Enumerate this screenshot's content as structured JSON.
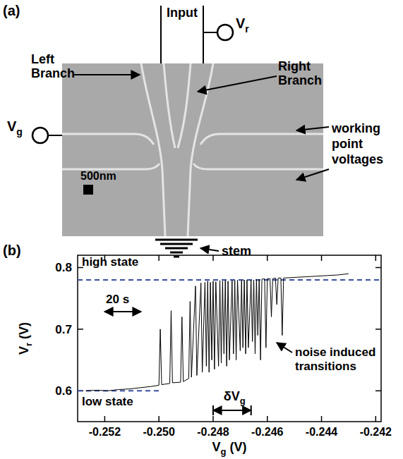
{
  "diagram": {
    "panel_label": "(a)",
    "input": "Input",
    "vr": "Vr",
    "vg": "Vg",
    "left_branch": "Left Branch",
    "right_branch": "Right Branch",
    "working_point": "working point voltages",
    "scale_bar": "500nm",
    "stem": "stem"
  },
  "chart_data": {
    "type": "line",
    "panel_label": "(b)",
    "xlabel": "Vg (V)",
    "ylabel": "Vr (V)",
    "color": "#000000",
    "x": [
      -0.2527,
      -0.2523,
      -0.2519,
      -0.2515,
      -0.2511,
      -0.2507,
      -0.2503,
      -0.25,
      -0.24995,
      -0.2499,
      -0.2496,
      -0.24955,
      -0.2495,
      -0.2492,
      -0.24915,
      -0.2491,
      -0.2489,
      -0.24885,
      -0.2488,
      -0.24865,
      -0.2486,
      -0.24845,
      -0.2484,
      -0.2483,
      -0.24825,
      -0.2482,
      -0.24815,
      -0.2481,
      -0.24805,
      -0.248,
      -0.24795,
      -0.2479,
      -0.2478,
      -0.24775,
      -0.2477,
      -0.24765,
      -0.2476,
      -0.24755,
      -0.2475,
      -0.24745,
      -0.2474,
      -0.2473,
      -0.24725,
      -0.2472,
      -0.24715,
      -0.2471,
      -0.247,
      -0.24695,
      -0.2469,
      -0.24685,
      -0.2468,
      -0.24675,
      -0.2467,
      -0.2466,
      -0.24655,
      -0.2465,
      -0.24645,
      -0.2464,
      -0.24635,
      -0.2463,
      -0.24625,
      -0.2462,
      -0.2461,
      -0.24605,
      -0.246,
      -0.2459,
      -0.24585,
      -0.2458,
      -0.2457,
      -0.24565,
      -0.2456,
      -0.2455,
      -0.24545,
      -0.2454,
      -0.245,
      -0.2446,
      -0.2442,
      -0.2438,
      -0.2434,
      -0.243
    ],
    "values": [
      0.6,
      0.601,
      0.6,
      0.602,
      0.603,
      0.605,
      0.607,
      0.609,
      0.7,
      0.61,
      0.612,
      0.73,
      0.613,
      0.614,
      0.72,
      0.615,
      0.62,
      0.745,
      0.622,
      0.77,
      0.625,
      0.775,
      0.63,
      0.776,
      0.64,
      0.778,
      0.63,
      0.776,
      0.65,
      0.778,
      0.635,
      0.777,
      0.64,
      0.779,
      0.645,
      0.778,
      0.66,
      0.779,
      0.64,
      0.778,
      0.65,
      0.779,
      0.66,
      0.779,
      0.65,
      0.78,
      0.665,
      0.779,
      0.67,
      0.78,
      0.66,
      0.78,
      0.67,
      0.78,
      0.68,
      0.78,
      0.66,
      0.781,
      0.69,
      0.781,
      0.65,
      0.781,
      0.782,
      0.67,
      0.782,
      0.782,
      0.72,
      0.782,
      0.783,
      0.74,
      0.783,
      0.783,
      0.69,
      0.783,
      0.784,
      0.785,
      0.786,
      0.787,
      0.788,
      0.79
    ],
    "xlim": [
      -0.253,
      -0.2418
    ],
    "xticks": [
      -0.252,
      {
        "value": -0.25,
        "label": "-0.250"
      },
      -0.248,
      -0.246,
      -0.244,
      -0.242
    ],
    "ylim": [
      0.55,
      0.82
    ],
    "yticks": [
      0.6,
      0.7,
      0.8
    ],
    "reference_lines": [
      {
        "value": 0.78,
        "label": "high state",
        "color": "#3a4ea0",
        "line_style": "dashed"
      },
      {
        "value": 0.6,
        "label": "low state",
        "color": "#3a4ea0",
        "line_style": "dashed"
      }
    ],
    "time_scale": {
      "label": "20 s"
    },
    "delta_vg": {
      "label": "δVg",
      "range": [
        -0.248,
        -0.2466
      ]
    },
    "noise_label": "noise induced transitions"
  }
}
